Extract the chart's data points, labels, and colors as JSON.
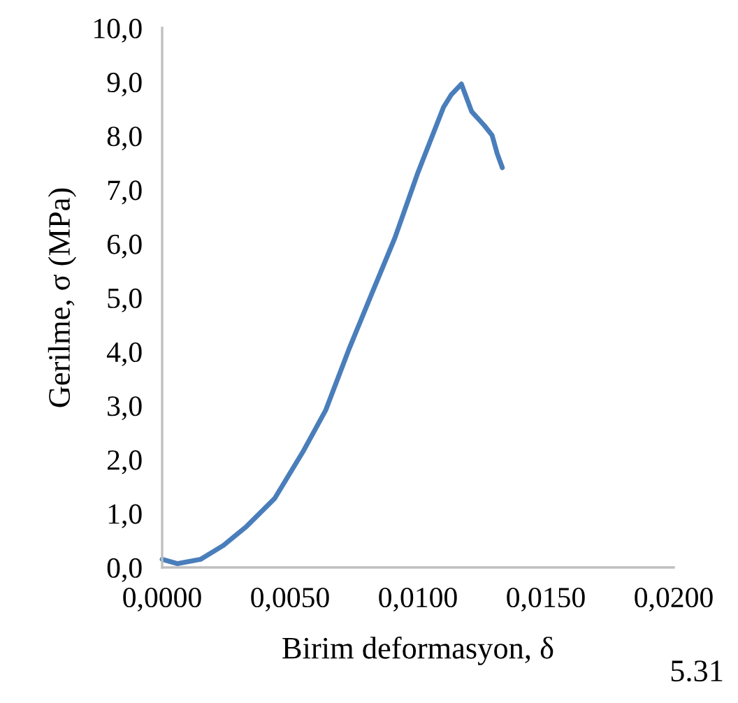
{
  "chart_data": {
    "type": "line",
    "xlabel": "Birim deformasyon, δ",
    "ylabel": "Gerilme, σ (MPa)",
    "annotations": [
      "5.31"
    ],
    "grid": false,
    "marker": "none",
    "line_style": "solid",
    "xlim": [
      0,
      0.02
    ],
    "xticks": [
      {
        "value": 0,
        "label": "0,0000"
      },
      {
        "value": 0.005,
        "label": "0,0050"
      },
      {
        "value": 0.01,
        "label": "0,0100"
      },
      {
        "value": 0.015,
        "label": "0,0150"
      },
      {
        "value": 0.02,
        "label": "0,0200"
      }
    ],
    "ylim": [
      0,
      10
    ],
    "yticks": [
      {
        "value": 0,
        "label": "0,0"
      },
      {
        "value": 1,
        "label": "1,0"
      },
      {
        "value": 2,
        "label": "2,0"
      },
      {
        "value": 3,
        "label": "3,0"
      },
      {
        "value": 4,
        "label": "4,0"
      },
      {
        "value": 5,
        "label": "5,0"
      },
      {
        "value": 6,
        "label": "6,0"
      },
      {
        "value": 7,
        "label": "7,0"
      },
      {
        "value": 8,
        "label": "8,0"
      },
      {
        "value": 9,
        "label": "9,0"
      },
      {
        "value": 10,
        "label": "10,0"
      }
    ],
    "series": [
      {
        "color": "#4a7ebb",
        "x": [
          0,
          0.0006,
          0.0015,
          0.0024,
          0.0033,
          0.0044,
          0.0055,
          0.0064,
          0.0073,
          0.0082,
          0.0091,
          0.01,
          0.011,
          0.0113,
          0.0117,
          0.0121,
          0.0126,
          0.0129,
          0.0131,
          0.0133
        ],
        "values": [
          0.15,
          0.07,
          0.15,
          0.41,
          0.76,
          1.28,
          2.14,
          2.92,
          4.04,
          5.08,
          6.11,
          7.32,
          8.53,
          8.76,
          8.96,
          8.45,
          8.19,
          8.01,
          7.67,
          7.41
        ]
      }
    ]
  }
}
